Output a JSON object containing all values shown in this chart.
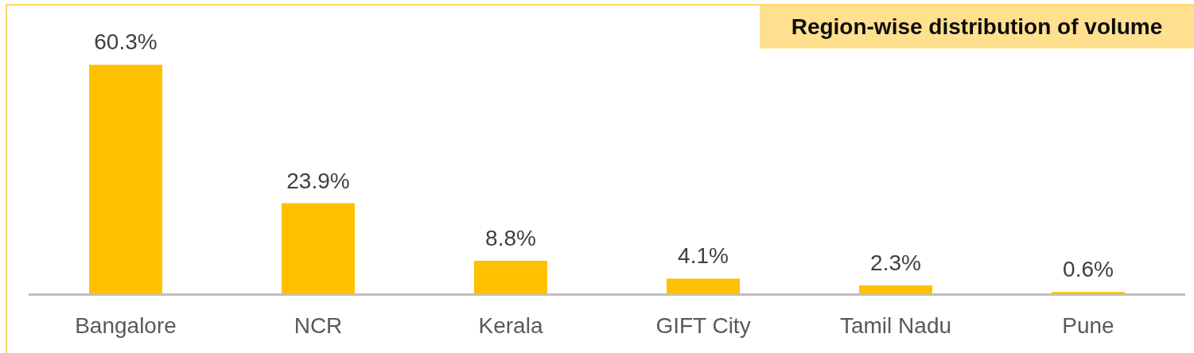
{
  "chart_data": {
    "type": "bar",
    "title": "Region-wise distribution of volume",
    "categories": [
      "Bangalore",
      "NCR",
      "Kerala",
      "GIFT City",
      "Tamil Nadu",
      "Pune"
    ],
    "values": [
      60.3,
      23.9,
      8.8,
      4.1,
      2.3,
      0.6
    ],
    "value_labels": [
      "60.3%",
      "23.9%",
      "8.8%",
      "4.1%",
      "2.3%",
      "0.6%"
    ],
    "color": "#ffc000",
    "tick_labels": "x",
    "grid": false,
    "legend": false
  }
}
